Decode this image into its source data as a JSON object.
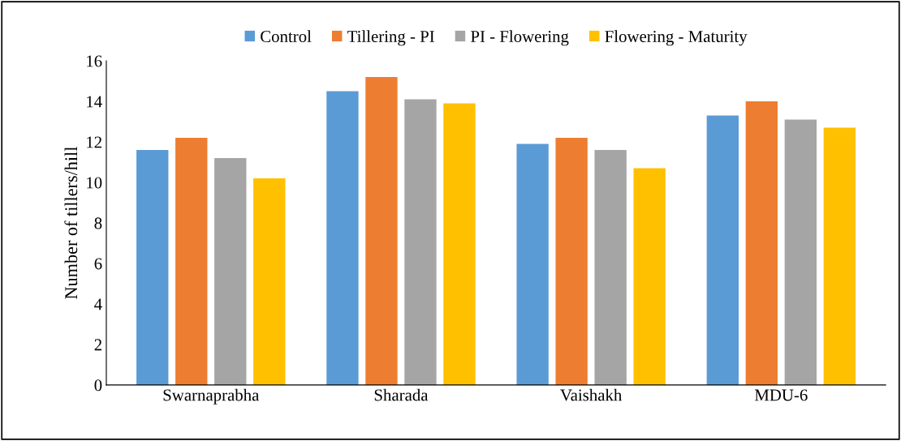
{
  "chart_data": {
    "type": "bar",
    "ylabel": "Number of tillers/hill",
    "categories": [
      "Swarnaprabha",
      "Sharada",
      "Vaishakh",
      "MDU-6"
    ],
    "series": [
      {
        "name": "Control",
        "color": "#5b9bd5",
        "values": [
          11.6,
          14.5,
          11.9,
          13.3
        ]
      },
      {
        "name": "Tillering - PI",
        "color": "#ed7d31",
        "values": [
          12.2,
          15.2,
          12.2,
          14.0
        ]
      },
      {
        "name": "PI - Flowering",
        "color": "#a5a5a5",
        "values": [
          11.2,
          14.1,
          11.6,
          13.1
        ]
      },
      {
        "name": "Flowering - Maturity",
        "color": "#ffc000",
        "values": [
          10.2,
          13.9,
          10.7,
          12.7
        ]
      }
    ],
    "ylim": [
      0,
      16
    ],
    "yticks": [
      0,
      2,
      4,
      6,
      8,
      10,
      12,
      14,
      16
    ],
    "legend": "top",
    "grid": false
  }
}
